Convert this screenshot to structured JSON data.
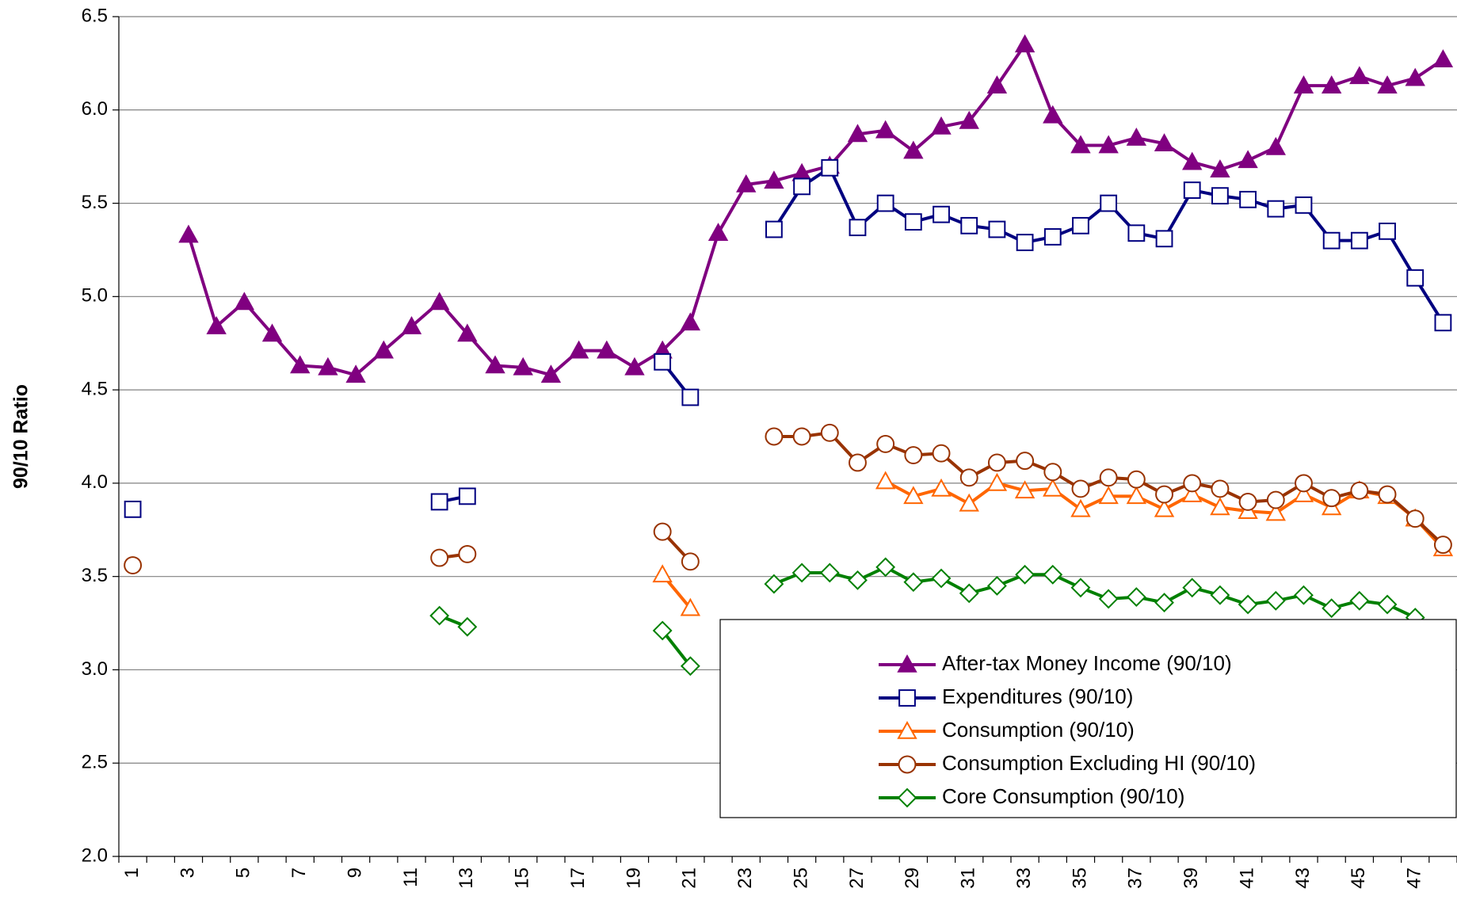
{
  "chart_data": {
    "type": "line",
    "ylabel": "90/10 Ratio",
    "categories": [
      "1",
      null,
      "3",
      null,
      "5",
      null,
      "7",
      null,
      "9",
      null,
      "11",
      null,
      "13",
      null,
      "15",
      null,
      "17",
      null,
      "19",
      null,
      "21",
      null,
      "23",
      null,
      "25",
      null,
      "27",
      null,
      "29",
      null,
      "31",
      null,
      "33",
      null,
      "35",
      null,
      "37",
      null,
      "39",
      null,
      "41",
      null,
      "43",
      null,
      "45",
      null,
      "47",
      null
    ],
    "series": [
      {
        "name": "After-tax Money Income (90/10)",
        "color": "#800080",
        "marker": "triangle-filled",
        "values": [
          null,
          null,
          5.33,
          4.84,
          4.97,
          4.8,
          4.63,
          4.62,
          4.58,
          4.71,
          4.84,
          4.97,
          4.8,
          4.63,
          4.62,
          4.58,
          4.71,
          4.71,
          4.62,
          4.71,
          4.86,
          5.34,
          5.6,
          5.62,
          5.66,
          5.7,
          5.87,
          5.89,
          5.78,
          5.91,
          5.94,
          6.13,
          6.35,
          5.97,
          5.81,
          5.81,
          5.85,
          5.82,
          5.72,
          5.68,
          5.73,
          5.8,
          6.13,
          6.13,
          6.18,
          6.13,
          6.17,
          6.27
        ]
      },
      {
        "name": "Expenditures (90/10)",
        "color": "#000080",
        "marker": "square",
        "values": [
          3.86,
          null,
          null,
          null,
          null,
          null,
          null,
          null,
          null,
          null,
          null,
          3.9,
          3.93,
          null,
          null,
          null,
          null,
          null,
          null,
          4.65,
          4.46,
          null,
          null,
          5.36,
          5.59,
          5.69,
          5.37,
          5.5,
          5.4,
          5.44,
          5.38,
          5.36,
          5.29,
          5.32,
          5.38,
          5.5,
          5.34,
          5.31,
          5.57,
          5.54,
          5.52,
          5.47,
          5.49,
          5.3,
          5.3,
          5.35,
          5.1,
          4.86
        ]
      },
      {
        "name": "Consumption (90/10)",
        "color": "#ff6600",
        "marker": "triangle",
        "values": [
          null,
          null,
          null,
          null,
          null,
          null,
          null,
          null,
          null,
          null,
          null,
          null,
          null,
          null,
          null,
          null,
          null,
          null,
          null,
          3.51,
          3.33,
          null,
          null,
          null,
          null,
          null,
          null,
          4.01,
          3.93,
          3.97,
          3.89,
          4.0,
          3.96,
          3.97,
          3.86,
          3.93,
          3.93,
          3.86,
          3.94,
          3.87,
          3.85,
          3.84,
          3.94,
          3.87,
          3.96,
          3.93,
          3.81,
          3.65
        ]
      },
      {
        "name": "Consumption Excluding HI (90/10)",
        "color": "#993300",
        "marker": "circle",
        "values": [
          3.56,
          null,
          null,
          null,
          null,
          null,
          null,
          null,
          null,
          null,
          null,
          3.6,
          3.62,
          null,
          null,
          null,
          null,
          null,
          null,
          3.74,
          3.58,
          null,
          null,
          4.25,
          4.25,
          4.27,
          4.11,
          4.21,
          4.15,
          4.16,
          4.03,
          4.11,
          4.12,
          4.06,
          3.97,
          4.03,
          4.02,
          3.94,
          4.0,
          3.97,
          3.9,
          3.91,
          4.0,
          3.92,
          3.96,
          3.94,
          3.81,
          3.67
        ]
      },
      {
        "name": "Core Consumption (90/10)",
        "color": "#008000",
        "marker": "diamond",
        "values": [
          null,
          null,
          null,
          null,
          null,
          null,
          null,
          null,
          null,
          null,
          null,
          3.29,
          3.23,
          null,
          null,
          null,
          null,
          null,
          null,
          3.21,
          3.02,
          null,
          null,
          3.46,
          3.52,
          3.52,
          3.48,
          3.55,
          3.47,
          3.49,
          3.41,
          3.45,
          3.51,
          3.51,
          3.44,
          3.38,
          3.39,
          3.36,
          3.44,
          3.4,
          3.35,
          3.37,
          3.4,
          3.33,
          3.37,
          3.35,
          3.28,
          3.18
        ]
      }
    ],
    "ylim": [
      2.0,
      6.5
    ],
    "yticks": [
      {
        "value": 2.0,
        "label": "2.0"
      },
      {
        "value": 2.5,
        "label": "2.5"
      },
      {
        "value": 3.0,
        "label": "3.0"
      },
      {
        "value": 3.5,
        "label": "3.5"
      },
      {
        "value": 4.0,
        "label": "4.0"
      },
      {
        "value": 4.5,
        "label": "4.5"
      },
      {
        "value": 5.0,
        "label": "5.0"
      },
      {
        "value": 5.5,
        "label": "5.5"
      },
      {
        "value": 6.0,
        "label": "6.0"
      },
      {
        "value": 6.5,
        "label": "6.5"
      }
    ],
    "grid": true,
    "legend": "lower right"
  }
}
